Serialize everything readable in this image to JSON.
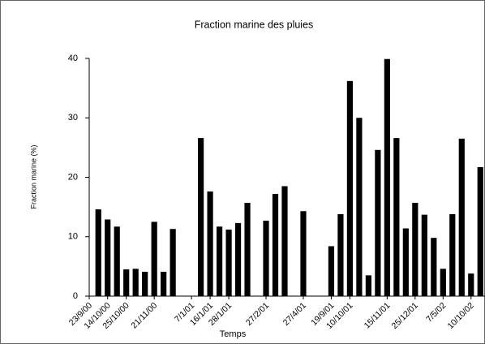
{
  "chart_data": {
    "type": "bar",
    "title": "Fraction marine des pluies",
    "xlabel": "Temps",
    "ylabel": "Fraction marine (%)",
    "categories": [
      "23/9/00",
      null,
      "14/10/00",
      null,
      "25/10/00",
      null,
      null,
      "21/11/00",
      null,
      null,
      null,
      "7/1/01",
      null,
      "16/1/01",
      null,
      "28/1/01",
      null,
      null,
      null,
      "27/2/01",
      null,
      null,
      null,
      "27/4/01",
      null,
      null,
      "19/9/01",
      null,
      "10/10/01",
      null,
      null,
      null,
      "15/11/01",
      null,
      null,
      "25/12/01",
      null,
      null,
      "7/5/02",
      null,
      null,
      "10/10/02",
      null
    ],
    "values": [
      null,
      14.6,
      12.9,
      11.7,
      4.5,
      4.6,
      4.1,
      12.5,
      4.1,
      11.3,
      null,
      null,
      26.6,
      17.6,
      11.7,
      11.2,
      12.3,
      15.7,
      null,
      12.7,
      17.2,
      18.5,
      null,
      14.3,
      null,
      null,
      8.4,
      13.8,
      36.2,
      30.0,
      3.5,
      24.6,
      39.9,
      26.6,
      11.4,
      15.7,
      13.7,
      9.8,
      4.6,
      13.8,
      26.5,
      3.8,
      21.7
    ],
    "color": "#000000",
    "ylim": [
      0,
      40
    ],
    "yticks": [
      0,
      10,
      20,
      30,
      40
    ],
    "grid": false
  }
}
